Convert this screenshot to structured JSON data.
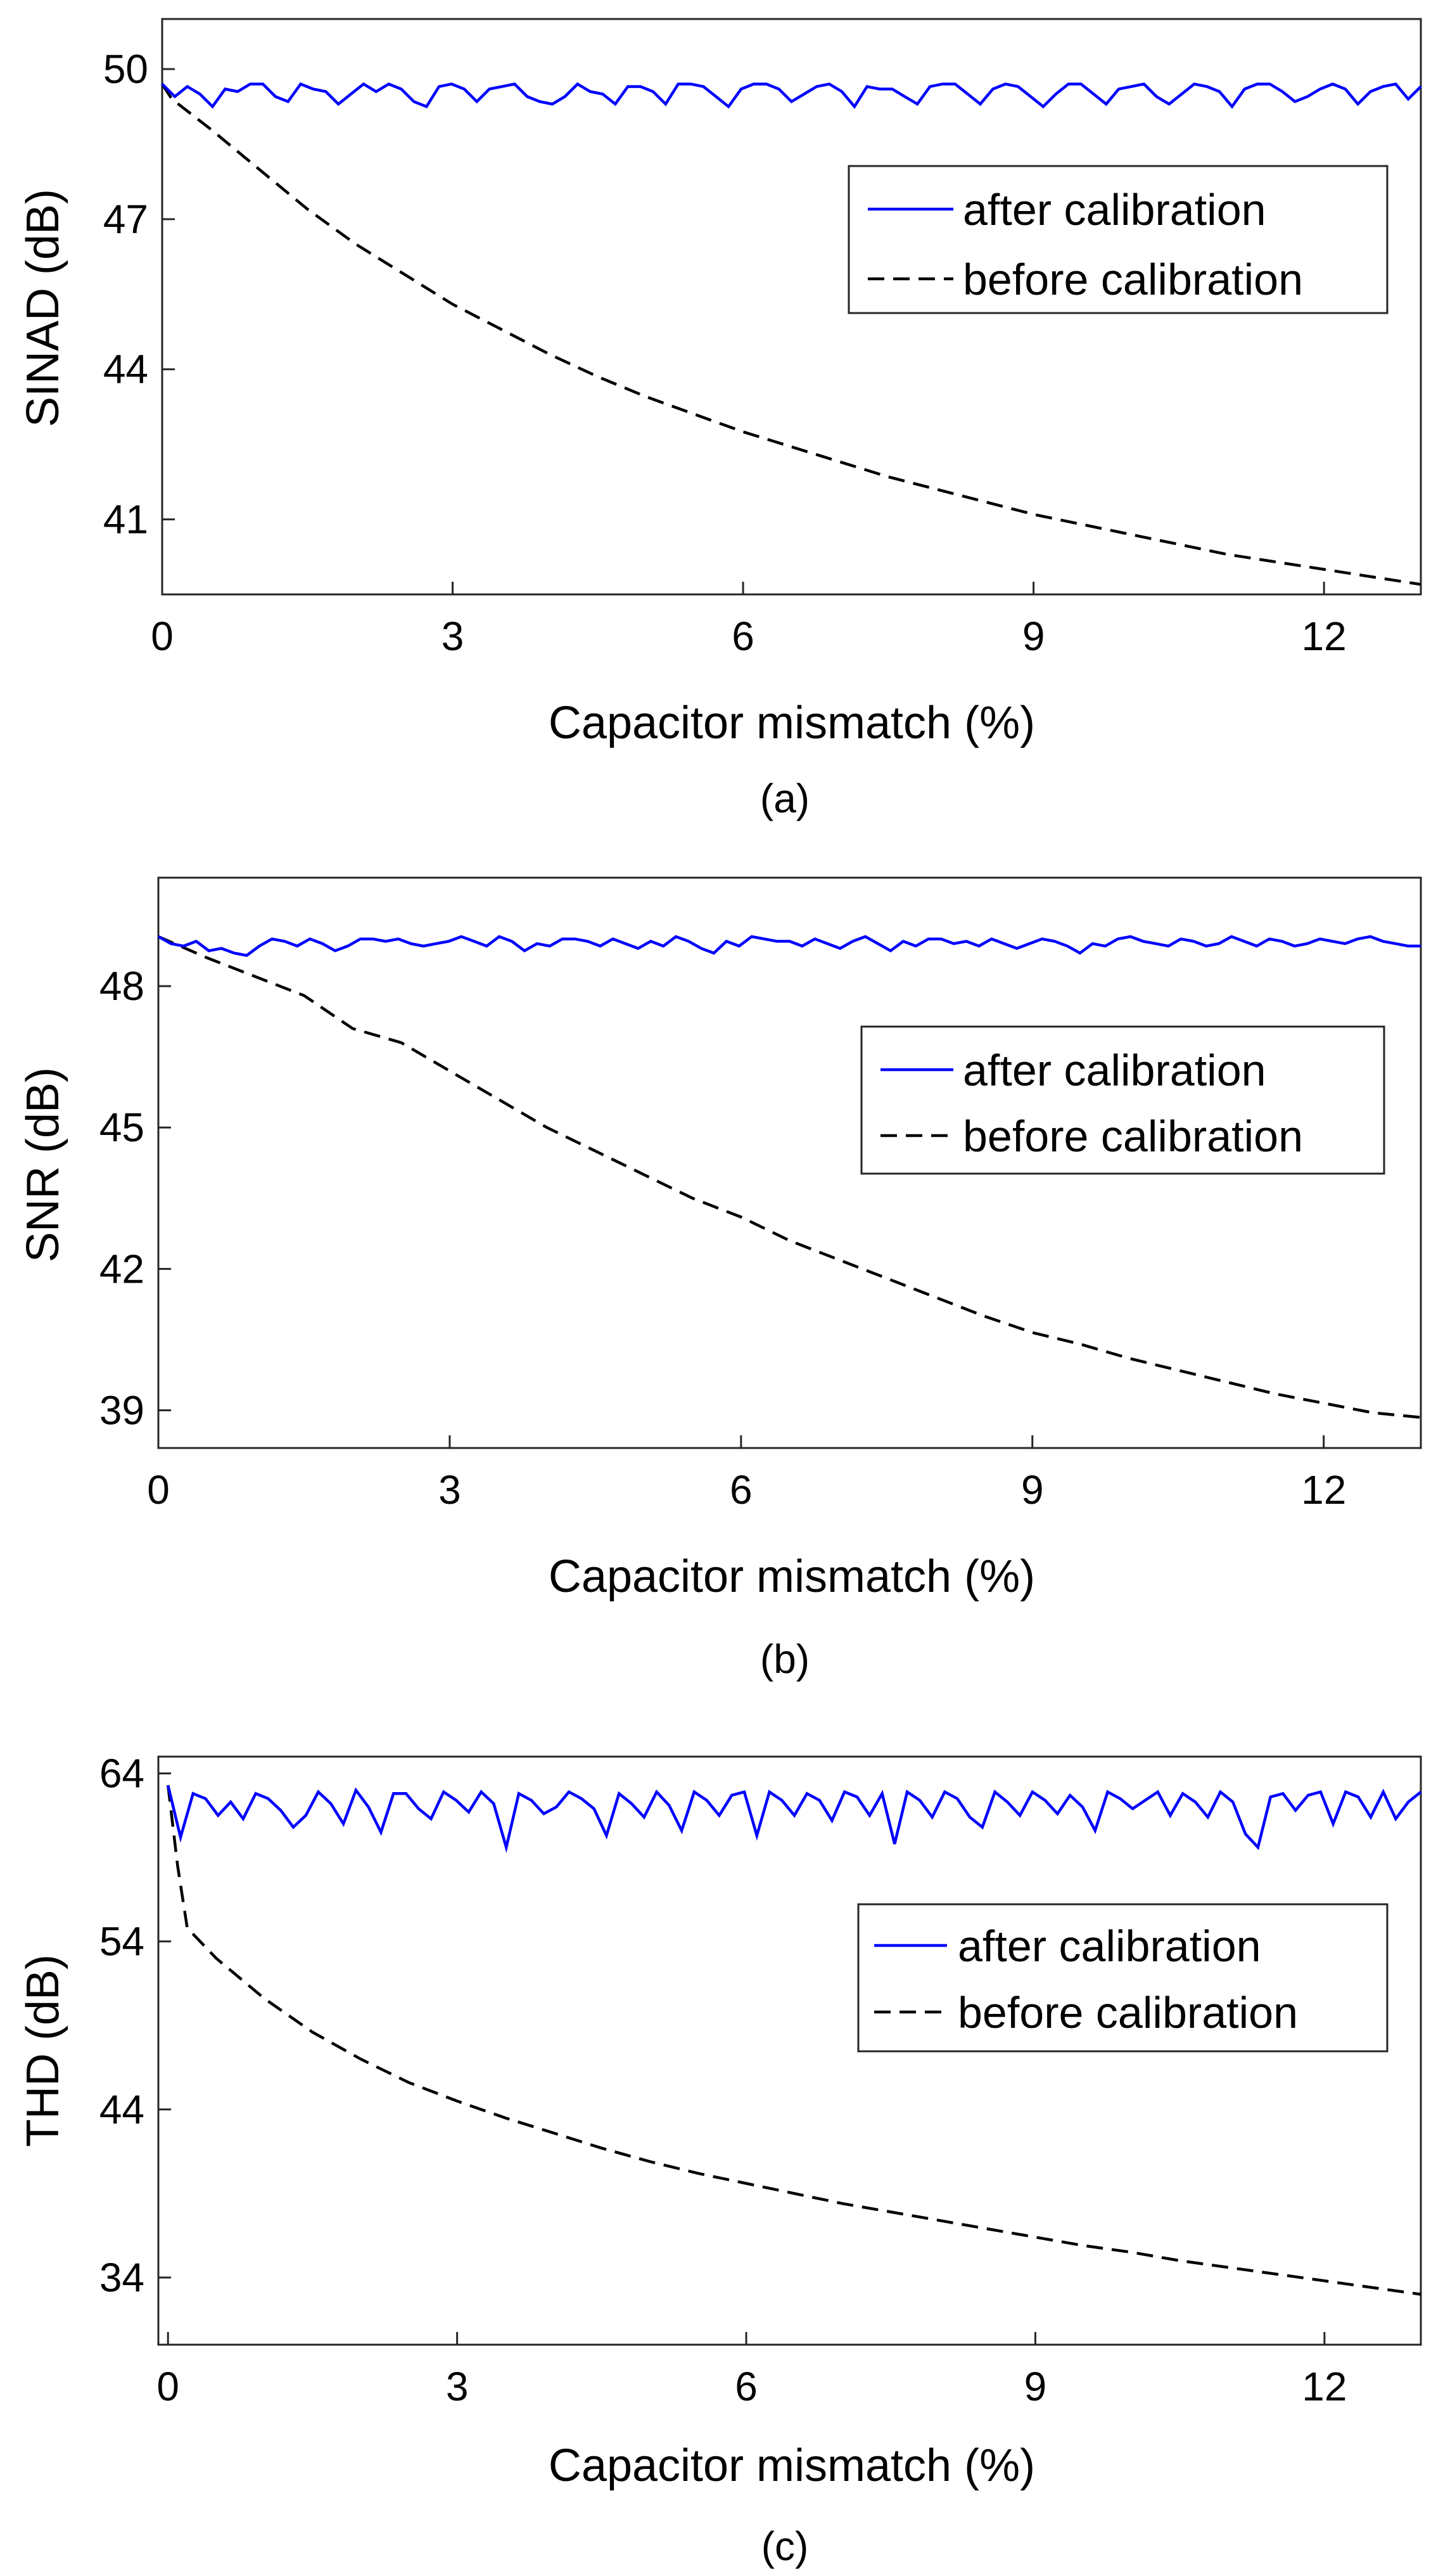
{
  "chart_data": [
    {
      "type": "line",
      "panel": "(a)",
      "caption": "(a)",
      "xlabel": "Capacitor mismatch (%)",
      "ylabel": "SINAD (dB)",
      "xlim": [
        0,
        13
      ],
      "ylim": [
        39.5,
        51
      ],
      "xticks": [
        0,
        3,
        6,
        9,
        12
      ],
      "xtick_labels": [
        "0",
        "3",
        "6",
        "9",
        "12"
      ],
      "yticks": [
        41,
        44,
        47,
        50
      ],
      "ytick_labels": [
        "41",
        "44",
        "47",
        "50"
      ],
      "legend_position": "top-right",
      "series": [
        {
          "name": "after calibration",
          "style": "solid",
          "color": "#0000ff",
          "x": [
            0,
            0.13,
            0.26,
            0.39,
            0.52,
            0.65,
            0.78,
            0.91,
            1.04,
            1.17,
            1.3,
            1.43,
            1.56,
            1.69,
            1.82,
            1.95,
            2.08,
            2.21,
            2.34,
            2.47,
            2.6,
            2.73,
            2.86,
            2.99,
            3.12,
            3.25,
            3.38,
            3.51,
            3.64,
            3.77,
            3.9,
            4.03,
            4.16,
            4.29,
            4.42,
            4.55,
            4.68,
            4.81,
            4.94,
            5.07,
            5.2,
            5.33,
            5.46,
            5.59,
            5.72,
            5.85,
            5.98,
            6.11,
            6.24,
            6.37,
            6.5,
            6.63,
            6.76,
            6.89,
            7.02,
            7.15,
            7.28,
            7.41,
            7.54,
            7.67,
            7.8,
            7.93,
            8.06,
            8.19,
            8.32,
            8.45,
            8.58,
            8.71,
            8.84,
            8.97,
            9.1,
            9.23,
            9.36,
            9.49,
            9.62,
            9.75,
            9.88,
            10.01,
            10.14,
            10.27,
            10.4,
            10.53,
            10.66,
            10.79,
            10.92,
            11.05,
            11.18,
            11.31,
            11.44,
            11.57,
            11.7,
            11.83,
            11.96,
            12.09,
            12.22,
            12.35,
            12.48,
            12.61,
            12.74,
            12.87,
            13.0
          ],
          "values": [
            49.7,
            49.45,
            49.65,
            49.5,
            49.25,
            49.6,
            49.55,
            49.7,
            49.7,
            49.45,
            49.35,
            49.7,
            49.6,
            49.55,
            49.3,
            49.5,
            49.7,
            49.55,
            49.7,
            49.6,
            49.35,
            49.25,
            49.65,
            49.7,
            49.6,
            49.35,
            49.6,
            49.65,
            49.7,
            49.45,
            49.35,
            49.3,
            49.45,
            49.7,
            49.55,
            49.5,
            49.3,
            49.65,
            49.65,
            49.55,
            49.3,
            49.7,
            49.7,
            49.65,
            49.45,
            49.25,
            49.6,
            49.7,
            49.7,
            49.6,
            49.35,
            49.5,
            49.65,
            49.7,
            49.55,
            49.25,
            49.65,
            49.6,
            49.6,
            49.45,
            49.3,
            49.65,
            49.7,
            49.7,
            49.5,
            49.3,
            49.6,
            49.7,
            49.65,
            49.45,
            49.25,
            49.5,
            49.7,
            49.7,
            49.5,
            49.3,
            49.6,
            49.65,
            49.7,
            49.45,
            49.3,
            49.5,
            49.7,
            49.65,
            49.55,
            49.25,
            49.6,
            49.7,
            49.7,
            49.55,
            49.35,
            49.45,
            49.6,
            49.7,
            49.6,
            49.3,
            49.55,
            49.65,
            49.7,
            49.4,
            49.65
          ]
        },
        {
          "name": "before calibration",
          "style": "dashed",
          "color": "#000000",
          "x": [
            0,
            0.1,
            0.5,
            1,
            1.5,
            2,
            2.5,
            3,
            3.5,
            4,
            4.5,
            5,
            5.5,
            6,
            6.5,
            7,
            7.5,
            8,
            8.5,
            9,
            9.5,
            10,
            10.5,
            11,
            11.5,
            12,
            12.5,
            13
          ],
          "values": [
            49.7,
            49.4,
            48.8,
            48.0,
            47.2,
            46.5,
            45.9,
            45.3,
            44.8,
            44.3,
            43.85,
            43.45,
            43.1,
            42.75,
            42.45,
            42.15,
            41.85,
            41.6,
            41.35,
            41.1,
            40.9,
            40.7,
            40.5,
            40.3,
            40.15,
            40.0,
            39.85,
            39.7
          ]
        }
      ]
    },
    {
      "type": "line",
      "panel": "(b)",
      "caption": "(b)",
      "xlabel": "Capacitor mismatch (%)",
      "ylabel": "SNR (dB)",
      "xlim": [
        0,
        13
      ],
      "ylim": [
        38.2,
        50.3
      ],
      "xticks": [
        0,
        3,
        6,
        9,
        12
      ],
      "xtick_labels": [
        "0",
        "3",
        "6",
        "9",
        "12"
      ],
      "yticks": [
        39,
        42,
        45,
        48
      ],
      "ytick_labels": [
        "39",
        "42",
        "45",
        "48"
      ],
      "legend_position": "top-right",
      "series": [
        {
          "name": "after calibration",
          "style": "solid",
          "color": "#0000ff",
          "x": [
            0,
            0.13,
            0.26,
            0.39,
            0.52,
            0.65,
            0.78,
            0.91,
            1.04,
            1.17,
            1.3,
            1.43,
            1.56,
            1.69,
            1.82,
            1.95,
            2.08,
            2.21,
            2.34,
            2.47,
            2.6,
            2.73,
            2.86,
            2.99,
            3.12,
            3.25,
            3.38,
            3.51,
            3.64,
            3.77,
            3.9,
            4.03,
            4.16,
            4.29,
            4.42,
            4.55,
            4.68,
            4.81,
            4.94,
            5.07,
            5.2,
            5.33,
            5.46,
            5.59,
            5.72,
            5.85,
            5.98,
            6.11,
            6.24,
            6.37,
            6.5,
            6.63,
            6.76,
            6.89,
            7.02,
            7.15,
            7.28,
            7.41,
            7.54,
            7.67,
            7.8,
            7.93,
            8.06,
            8.19,
            8.32,
            8.45,
            8.58,
            8.71,
            8.84,
            8.97,
            9.1,
            9.23,
            9.36,
            9.49,
            9.62,
            9.75,
            9.88,
            10.01,
            10.14,
            10.27,
            10.4,
            10.53,
            10.66,
            10.79,
            10.92,
            11.05,
            11.18,
            11.31,
            11.44,
            11.57,
            11.7,
            11.83,
            11.96,
            12.09,
            12.22,
            12.35,
            12.48,
            12.61,
            12.74,
            12.87,
            13.0
          ],
          "values": [
            49.05,
            48.9,
            48.85,
            48.95,
            48.75,
            48.8,
            48.7,
            48.65,
            48.85,
            49.0,
            48.95,
            48.85,
            49.0,
            48.9,
            48.75,
            48.85,
            49.0,
            49.0,
            48.95,
            49.0,
            48.9,
            48.85,
            48.9,
            48.95,
            49.05,
            48.95,
            48.85,
            49.05,
            48.95,
            48.75,
            48.9,
            48.85,
            49.0,
            49.0,
            48.95,
            48.85,
            49.0,
            48.9,
            48.8,
            48.95,
            48.85,
            49.05,
            48.95,
            48.8,
            48.7,
            48.95,
            48.85,
            49.05,
            49.0,
            48.95,
            48.95,
            48.85,
            49.0,
            48.9,
            48.8,
            48.95,
            49.05,
            48.9,
            48.75,
            48.95,
            48.85,
            49.0,
            49.0,
            48.9,
            48.95,
            48.85,
            49.0,
            48.9,
            48.8,
            48.9,
            49.0,
            48.95,
            48.85,
            48.7,
            48.9,
            48.85,
            49.0,
            49.05,
            48.95,
            48.9,
            48.85,
            49.0,
            48.95,
            48.85,
            48.9,
            49.05,
            48.95,
            48.85,
            49.0,
            48.95,
            48.85,
            48.9,
            49.0,
            48.95,
            48.9,
            49.0,
            49.05,
            48.95,
            48.9,
            48.85,
            48.85
          ]
        },
        {
          "name": "before calibration",
          "style": "dashed",
          "color": "#000000",
          "x": [
            0,
            0.5,
            1,
            1.5,
            2,
            2.5,
            3,
            3.5,
            4,
            4.5,
            5,
            5.5,
            6,
            6.5,
            7,
            7.5,
            8,
            8.5,
            9,
            9.5,
            10,
            10.5,
            11,
            11.5,
            12,
            12.5,
            13
          ],
          "values": [
            49.05,
            48.6,
            48.2,
            47.8,
            47.1,
            46.8,
            46.2,
            45.6,
            45.0,
            44.5,
            44.0,
            43.5,
            43.1,
            42.6,
            42.2,
            41.8,
            41.4,
            41.0,
            40.65,
            40.4,
            40.1,
            39.85,
            39.6,
            39.35,
            39.15,
            38.95,
            38.85
          ]
        }
      ]
    },
    {
      "type": "line",
      "panel": "(c)",
      "caption": "(c)",
      "xlabel": "Capacitor mismatch (%)",
      "ylabel": "THD (dB)",
      "xlim": [
        -0.1,
        13
      ],
      "ylim": [
        30,
        65
      ],
      "xticks": [
        0,
        3,
        6,
        9,
        12
      ],
      "xtick_labels": [
        "0",
        "3",
        "6",
        "9",
        "12"
      ],
      "yticks": [
        34,
        44,
        54,
        64
      ],
      "ytick_labels": [
        "34",
        "44",
        "54",
        "64"
      ],
      "legend_position": "top-right",
      "series": [
        {
          "name": "after calibration",
          "style": "solid",
          "color": "#0000ff",
          "x": [
            0,
            0.13,
            0.26,
            0.39,
            0.52,
            0.65,
            0.78,
            0.91,
            1.04,
            1.17,
            1.3,
            1.43,
            1.56,
            1.69,
            1.82,
            1.95,
            2.08,
            2.21,
            2.34,
            2.47,
            2.6,
            2.73,
            2.86,
            2.99,
            3.12,
            3.25,
            3.38,
            3.51,
            3.64,
            3.77,
            3.9,
            4.03,
            4.16,
            4.29,
            4.42,
            4.55,
            4.68,
            4.81,
            4.94,
            5.07,
            5.2,
            5.33,
            5.46,
            5.59,
            5.72,
            5.85,
            5.98,
            6.11,
            6.24,
            6.37,
            6.5,
            6.63,
            6.76,
            6.89,
            7.02,
            7.15,
            7.28,
            7.41,
            7.54,
            7.67,
            7.8,
            7.93,
            8.06,
            8.19,
            8.32,
            8.45,
            8.58,
            8.71,
            8.84,
            8.97,
            9.1,
            9.23,
            9.36,
            9.49,
            9.62,
            9.75,
            9.88,
            10.01,
            10.14,
            10.27,
            10.4,
            10.53,
            10.66,
            10.79,
            10.92,
            11.05,
            11.18,
            11.31,
            11.44,
            11.57,
            11.7,
            11.83,
            11.96,
            12.09,
            12.22,
            12.35,
            12.48,
            12.61,
            12.74,
            12.87,
            13.0
          ],
          "values": [
            63.3,
            60.2,
            62.8,
            62.5,
            61.5,
            62.3,
            61.3,
            62.8,
            62.5,
            61.8,
            60.8,
            61.5,
            62.9,
            62.2,
            61.0,
            63.0,
            62.0,
            60.5,
            62.8,
            62.8,
            61.9,
            61.3,
            62.9,
            62.4,
            61.7,
            62.9,
            62.2,
            59.6,
            62.8,
            62.4,
            61.6,
            62.0,
            62.9,
            62.5,
            61.9,
            60.3,
            62.8,
            62.2,
            61.4,
            62.9,
            62.1,
            60.6,
            62.9,
            62.4,
            61.5,
            62.7,
            62.9,
            60.3,
            62.9,
            62.4,
            61.5,
            62.8,
            62.4,
            61.2,
            62.9,
            62.6,
            61.5,
            62.8,
            59.8,
            62.9,
            62.4,
            61.4,
            62.9,
            62.5,
            61.4,
            60.8,
            62.9,
            62.3,
            61.5,
            62.9,
            62.4,
            61.6,
            62.7,
            62.0,
            60.6,
            62.9,
            62.5,
            61.9,
            62.4,
            62.9,
            61.5,
            62.8,
            62.3,
            61.4,
            62.9,
            62.3,
            60.4,
            59.6,
            62.6,
            62.8,
            61.8,
            62.7,
            62.9,
            61.0,
            62.9,
            62.6,
            61.4,
            62.9,
            61.3,
            62.3,
            62.9
          ]
        },
        {
          "name": "before calibration",
          "style": "dashed",
          "color": "#000000",
          "x": [
            0,
            0.1,
            0.2,
            0.5,
            1,
            1.5,
            2,
            2.5,
            3,
            3.5,
            4,
            4.5,
            5,
            5.5,
            6,
            6.5,
            7,
            7.5,
            8,
            8.5,
            9,
            9.5,
            10,
            10.5,
            11,
            11.5,
            12,
            12.5,
            13
          ],
          "values": [
            63.3,
            58.5,
            54.8,
            53.0,
            50.6,
            48.6,
            47.0,
            45.6,
            44.5,
            43.5,
            42.6,
            41.7,
            40.9,
            40.2,
            39.6,
            39.0,
            38.4,
            37.9,
            37.4,
            36.9,
            36.4,
            35.9,
            35.5,
            35.0,
            34.6,
            34.2,
            33.8,
            33.4,
            33.0
          ]
        }
      ]
    }
  ]
}
